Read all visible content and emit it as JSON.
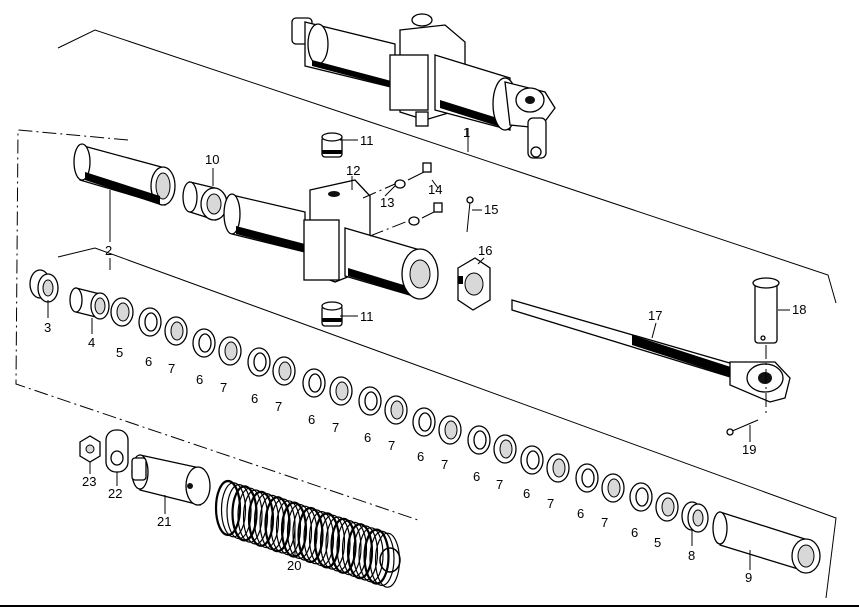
{
  "labels": {
    "p1": "1",
    "p2": "2",
    "p3": "3",
    "p4": "4",
    "p5a": "5",
    "p5b": "5",
    "p6a": "6",
    "p6b": "6",
    "p6c": "6",
    "p6d": "6",
    "p6e": "6",
    "p6f": "6",
    "p6g": "6",
    "p6h": "6",
    "p6i": "6",
    "p6j": "6",
    "p6k": "6",
    "p7a": "7",
    "p7b": "7",
    "p7c": "7",
    "p7d": "7",
    "p7e": "7",
    "p7f": "7",
    "p7g": "7",
    "p7h": "7",
    "p7i": "7",
    "p7j": "7",
    "p8": "8",
    "p9": "9",
    "p10": "10",
    "p11a": "11",
    "p11b": "11",
    "p12": "12",
    "p13": "13",
    "p14": "14",
    "p15": "15",
    "p16": "16",
    "p17": "17",
    "p18": "18",
    "p19": "19",
    "p20": "20",
    "p21": "21",
    "p22": "22",
    "p23": "23"
  }
}
